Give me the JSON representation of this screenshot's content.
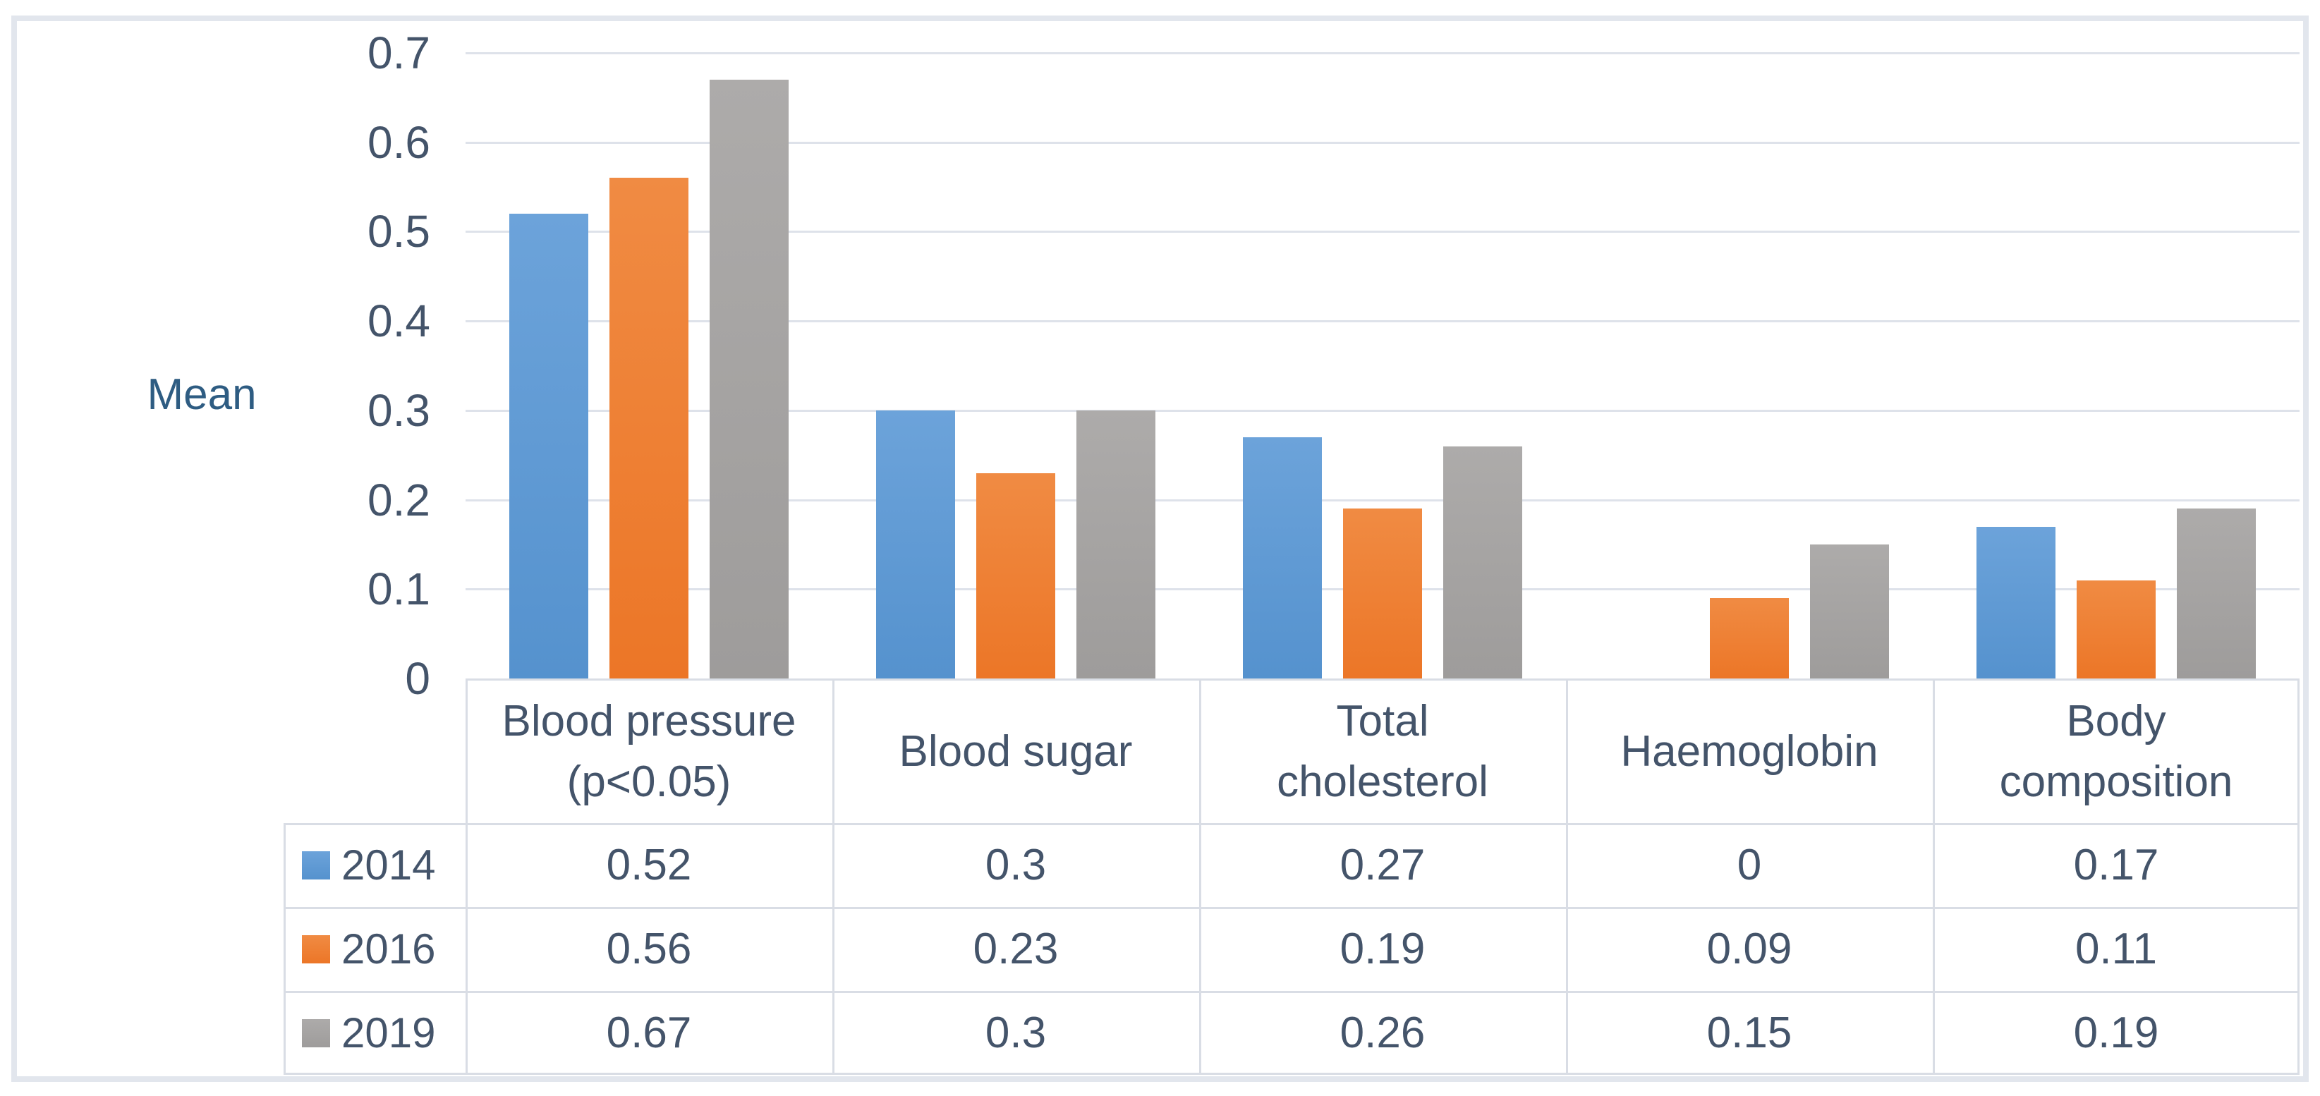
{
  "chart_data": {
    "type": "bar",
    "title": "",
    "ylabel": "Mean",
    "xlabel": "",
    "ylim": [
      0,
      0.7
    ],
    "y_ticks": [
      "0.7",
      "0.6",
      "0.5",
      "0.4",
      "0.3",
      "0.2",
      "0.1",
      "0"
    ],
    "grid": true,
    "legend_position": "data-table-left",
    "data_table_shown": true,
    "categories": [
      "Blood pressure\n(p<0.05)",
      "Blood sugar",
      "Total\ncholesterol",
      "Haemoglobin",
      "Body\ncomposition"
    ],
    "series": [
      {
        "name": "2014",
        "color_main": "#5b9bd5",
        "color_top": "#6ca3da",
        "color_bottom": "#5592ce",
        "values": [
          0.52,
          0.3,
          0.27,
          0,
          0.17
        ]
      },
      {
        "name": "2016",
        "color_main": "#ed7d31",
        "color_top": "#f08b43",
        "color_bottom": "#ec7627",
        "values": [
          0.56,
          0.23,
          0.19,
          0.09,
          0.11
        ]
      },
      {
        "name": "2019",
        "color_main": "#a5a5a5",
        "color_top": "#adabaa",
        "color_bottom": "#9e9c9b",
        "values": [
          0.67,
          0.3,
          0.26,
          0.15,
          0.19
        ]
      }
    ]
  },
  "colors": {
    "text": "#44546a",
    "axis_title": "#2e5c82",
    "gridline": "#dee2ea",
    "table_border": "#d9dde5",
    "chart_frame": "#e2e6ed",
    "background": "#ffffff"
  }
}
